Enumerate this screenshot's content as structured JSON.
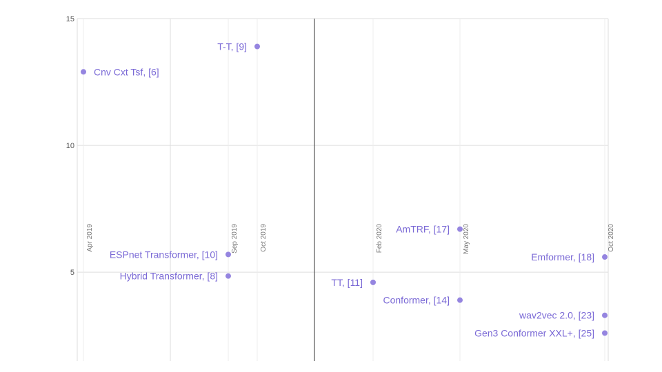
{
  "chart_data": {
    "type": "scatter",
    "title": "",
    "xlabel": "",
    "ylabel": "",
    "ylim": [
      1.5,
      15
    ],
    "xlim": [
      "2019-04",
      "2020-10"
    ],
    "grid": true,
    "x_ticks": [
      {
        "date": "2019-04",
        "label": "Apr 2019"
      },
      {
        "date": "2019-09",
        "label": "Sep 2019"
      },
      {
        "date": "2019-10",
        "label": "Oct 2019"
      },
      {
        "date": "2020-02",
        "label": "Feb 2020"
      },
      {
        "date": "2020-05",
        "label": "May 2020"
      },
      {
        "date": "2020-10",
        "label": "Oct 2020"
      }
    ],
    "y_ticks": [
      5,
      10,
      15
    ],
    "points": [
      {
        "label": "Cnv Cxt Tsf, [6]",
        "x": "2019-04",
        "y": 12.9,
        "label_side": "right"
      },
      {
        "label": "T-T, [9]",
        "x": "2019-10",
        "y": 13.9,
        "label_side": "left"
      },
      {
        "label": "ESPnet Transformer, [10]",
        "x": "2019-09",
        "y": 5.7,
        "label_side": "left"
      },
      {
        "label": "Hybrid Transformer, [8]",
        "x": "2019-09",
        "y": 4.85,
        "label_side": "left"
      },
      {
        "label": "AmTRF, [17]",
        "x": "2020-05",
        "y": 6.7,
        "label_side": "left"
      },
      {
        "label": "TT, [11]",
        "x": "2020-02",
        "y": 4.6,
        "label_side": "left"
      },
      {
        "label": "Conformer, [14]",
        "x": "2020-05",
        "y": 3.9,
        "label_side": "left"
      },
      {
        "label": "Emformer, [18]",
        "x": "2020-10",
        "y": 5.6,
        "label_side": "left"
      },
      {
        "label": "wav2vec 2.0, [23]",
        "x": "2020-10",
        "y": 3.3,
        "label_side": "left"
      },
      {
        "label": "Gen3 Conformer XXL+, [25]",
        "x": "2020-10",
        "y": 2.6,
        "label_side": "left"
      }
    ],
    "colors": {
      "point": "#9585e0",
      "label": "#7b6ad6",
      "grid": "#dddddd",
      "divider": "#555555"
    }
  }
}
